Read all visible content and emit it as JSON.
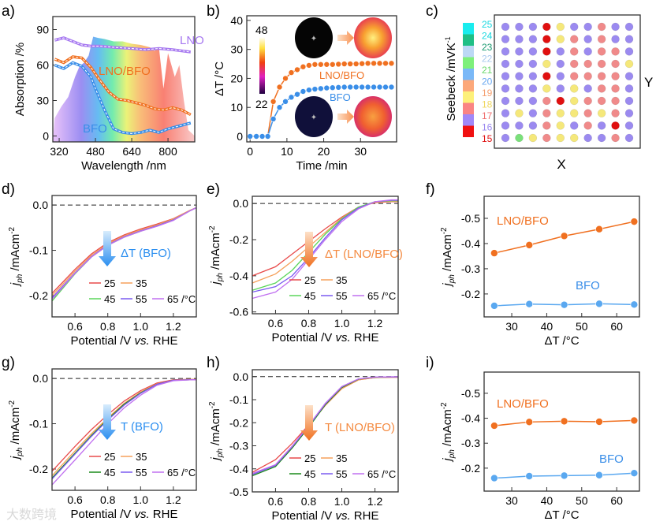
{
  "watermark": "大数跨境",
  "colors": {
    "lno": "#a678f0",
    "lnobfo": "#f07020",
    "bfo": "#3a8ee8",
    "t25": "#e84a4a",
    "t35": "#f5a05a",
    "t45": "#5ad65a",
    "t45dark": "#1a8a1a",
    "t55": "#7a5af0",
    "t65": "#c070f0"
  },
  "chart_data": [
    {
      "id": "a",
      "label": "a)",
      "type": "line",
      "xlabel": "Wavelength /nm",
      "ylabel": "Absorption /%",
      "xlim": [
        292,
        918
      ],
      "ylim": [
        -5,
        101
      ],
      "xticks": [
        320,
        480,
        640,
        800
      ],
      "yticks": [
        0,
        30,
        60,
        90
      ],
      "series": [
        {
          "name": "LNO",
          "color": "#a678f0",
          "x": [
            300,
            340,
            380,
            420,
            460,
            500,
            560,
            640,
            700,
            760,
            820,
            900
          ],
          "y": [
            81,
            83,
            80,
            77,
            76,
            76,
            75,
            74,
            73,
            74,
            73,
            71
          ]
        },
        {
          "name": "LNO/BFO",
          "color": "#f07020",
          "x": [
            300,
            340,
            380,
            420,
            460,
            500,
            540,
            580,
            620,
            660,
            700,
            740,
            780,
            820,
            860,
            900
          ],
          "y": [
            65,
            62,
            67,
            66,
            58,
            47,
            37,
            31,
            30,
            28,
            26,
            23,
            22,
            24,
            22,
            18
          ]
        },
        {
          "name": "BFO",
          "color": "#3a8ee8",
          "x": [
            300,
            340,
            380,
            420,
            460,
            480,
            520,
            560,
            600,
            640,
            680,
            720,
            760,
            800,
            840,
            900
          ],
          "y": [
            60,
            57,
            62,
            59,
            50,
            40,
            22,
            6,
            3,
            2,
            3,
            5,
            3,
            6,
            8,
            11
          ]
        }
      ]
    },
    {
      "id": "b",
      "label": "b)",
      "type": "line",
      "xlabel": "Time /min",
      "ylabel": "ΔT /°C",
      "xlim": [
        -0.9,
        39.8
      ],
      "ylim": [
        -1.9,
        41.6
      ],
      "xticks": [
        0,
        10,
        20,
        30
      ],
      "yticks": [
        0,
        10,
        20,
        30,
        40
      ],
      "colorbar": {
        "max": "48",
        "min": "22"
      },
      "series": [
        {
          "name": "LNO/BFO",
          "color": "#f07020",
          "x": [
            0,
            1.7,
            3.3,
            4.8,
            6.3,
            8,
            9.6,
            11.2,
            12.8,
            14.4,
            16,
            17.6,
            19.2,
            20.8,
            22.4,
            24,
            25.6,
            27.2,
            28.8,
            30.4,
            32,
            33.6,
            35.2,
            36.8,
            38.4
          ],
          "y": [
            0,
            0,
            0,
            0,
            12,
            17,
            20,
            22,
            23,
            24,
            24.5,
            24.8,
            24.8,
            24.8,
            24.8,
            24.9,
            25,
            25,
            25,
            25.1,
            25.2,
            25.2,
            25.2,
            25.2,
            25.2
          ]
        },
        {
          "name": "BFO",
          "color": "#3a8ee8",
          "x": [
            0,
            1.7,
            3.3,
            4.8,
            6.3,
            8,
            9.6,
            11.2,
            12.8,
            14.4,
            16,
            17.6,
            19.2,
            20.8,
            22.4,
            24,
            25.6,
            27.2,
            28.8,
            30.4,
            32,
            33.6,
            35.2,
            36.8,
            38.4
          ],
          "y": [
            0,
            0,
            0,
            0,
            6,
            10,
            12,
            13.5,
            14.5,
            15.5,
            16,
            16.3,
            16.5,
            16.7,
            16.8,
            16.9,
            17,
            17,
            17,
            17,
            17,
            17,
            17,
            17,
            17
          ]
        }
      ]
    },
    {
      "id": "c",
      "label": "c)",
      "type": "heatmap",
      "ylabel": "Seebeck /mVK",
      "ylabel_sup": "-1",
      "xlabel": "X",
      "y_axis_label": "Y",
      "scale_labels": [
        "25",
        "24",
        "23",
        "22",
        "21",
        "20",
        "19",
        "18",
        "17",
        "16",
        "15"
      ],
      "scale_label_colors": [
        "#19d8e0",
        "#19d8e0",
        "#1a9a70",
        "#a8c8ee",
        "#6ad86a",
        "#6aa8f0",
        "#f5a070",
        "#f0d860",
        "#f07070",
        "#9a88f0",
        "#e01010"
      ],
      "scale_blocks": [
        "#19ecee",
        "#1fbf86",
        "#bcd8f5",
        "#7ef07a",
        "#7ab8f7",
        "#fca87a",
        "#fdf07a",
        "#fa8484",
        "#a088f8",
        "#f01010"
      ],
      "value_colors": {
        "15": "#e01010",
        "16": "#9b8af0",
        "17": "#f08a8a",
        "18": "#f5e87a",
        "21": "#7ae07a"
      },
      "grid": [
        [
          16,
          16,
          16,
          15,
          18,
          16,
          16,
          17,
          16,
          16
        ],
        [
          16,
          16,
          16,
          15,
          18,
          17,
          16,
          17,
          16,
          16
        ],
        [
          16,
          16,
          16,
          15,
          16,
          17,
          16,
          17,
          17,
          16
        ],
        [
          16,
          16,
          16,
          18,
          16,
          17,
          17,
          17,
          17,
          18
        ],
        [
          16,
          16,
          16,
          15,
          16,
          17,
          17,
          17,
          17,
          16
        ],
        [
          16,
          16,
          16,
          18,
          16,
          18,
          16,
          17,
          17,
          16
        ],
        [
          16,
          16,
          16,
          17,
          15,
          18,
          17,
          17,
          17,
          16
        ],
        [
          16,
          18,
          16,
          17,
          18,
          18,
          17,
          18,
          17,
          16
        ],
        [
          16,
          16,
          16,
          17,
          18,
          16,
          17,
          16,
          15,
          16
        ],
        [
          16,
          21,
          18,
          17,
          18,
          18,
          16,
          16,
          17,
          16
        ]
      ]
    },
    {
      "id": "d",
      "label": "d)",
      "type": "line",
      "xlabel": "Potential /V vs. RHE",
      "ylabel": "jph /mAcm-2",
      "xlim": [
        0.46,
        1.34
      ],
      "ylim": [
        -0.247,
        0.021
      ],
      "xticks": [
        0.6,
        0.8,
        1.0,
        1.2
      ],
      "yticks": [
        0.0,
        -0.1,
        -0.2
      ],
      "annotation": "ΔT (BFO)",
      "legend": [
        "25",
        "35",
        "45",
        "55",
        "65 /°C"
      ],
      "x": [
        0.46,
        0.6,
        0.7,
        0.8,
        0.9,
        1.0,
        1.1,
        1.2,
        1.3,
        1.34
      ],
      "series": [
        {
          "name": "25",
          "color": "#e84a4a",
          "y": [
            -0.195,
            -0.142,
            -0.108,
            -0.083,
            -0.066,
            -0.053,
            -0.042,
            -0.03,
            -0.012,
            -0.006
          ]
        },
        {
          "name": "35",
          "color": "#f5a05a",
          "y": [
            -0.2,
            -0.146,
            -0.111,
            -0.086,
            -0.068,
            -0.055,
            -0.044,
            -0.031,
            -0.012,
            -0.006
          ]
        },
        {
          "name": "45",
          "color": "#5ad65a",
          "y": [
            -0.212,
            -0.152,
            -0.115,
            -0.089,
            -0.071,
            -0.058,
            -0.046,
            -0.033,
            -0.013,
            -0.006
          ]
        },
        {
          "name": "55",
          "color": "#7a5af0",
          "y": [
            -0.205,
            -0.15,
            -0.114,
            -0.088,
            -0.07,
            -0.057,
            -0.046,
            -0.033,
            -0.013,
            -0.006
          ]
        },
        {
          "name": "65",
          "color": "#c070f0",
          "y": [
            -0.208,
            -0.151,
            -0.115,
            -0.089,
            -0.071,
            -0.058,
            -0.047,
            -0.034,
            -0.013,
            -0.006
          ]
        }
      ]
    },
    {
      "id": "e",
      "label": "e)",
      "type": "line",
      "xlabel": "Potential /V vs. RHE",
      "ylabel": "jph /mAcm-2",
      "xlim": [
        0.46,
        1.34
      ],
      "ylim": [
        -0.61,
        0.04
      ],
      "xticks": [
        0.6,
        0.8,
        1.0,
        1.2
      ],
      "yticks": [
        0.0,
        -0.2,
        -0.4,
        -0.6
      ],
      "annotation": "ΔT (LNO/BFO)",
      "legend": [
        "25",
        "35",
        "45",
        "55",
        "65 /°C"
      ],
      "x": [
        0.46,
        0.6,
        0.7,
        0.8,
        0.9,
        1.0,
        1.1,
        1.2,
        1.3,
        1.34
      ],
      "series": [
        {
          "name": "25",
          "color": "#e84a4a",
          "y": [
            -0.4,
            -0.35,
            -0.28,
            -0.21,
            -0.14,
            -0.075,
            -0.02,
            0.005,
            0.01,
            0.01
          ]
        },
        {
          "name": "35",
          "color": "#f5a05a",
          "y": [
            -0.44,
            -0.39,
            -0.32,
            -0.24,
            -0.16,
            -0.08,
            -0.02,
            0.008,
            0.012,
            0.012
          ]
        },
        {
          "name": "45",
          "color": "#5ad65a",
          "y": [
            -0.48,
            -0.44,
            -0.37,
            -0.27,
            -0.17,
            -0.085,
            -0.02,
            0.01,
            0.015,
            0.015
          ]
        },
        {
          "name": "55",
          "color": "#7a5af0",
          "y": [
            -0.49,
            -0.46,
            -0.4,
            -0.3,
            -0.19,
            -0.09,
            -0.025,
            0.01,
            0.018,
            0.018
          ]
        },
        {
          "name": "65",
          "color": "#c070f0",
          "y": [
            -0.525,
            -0.49,
            -0.42,
            -0.31,
            -0.2,
            -0.1,
            -0.03,
            0.01,
            0.02,
            0.02
          ]
        }
      ]
    },
    {
      "id": "f",
      "label": "f)",
      "type": "line",
      "xlabel": "ΔT /°C",
      "ylabel": "jph /mAcm-2",
      "xlim": [
        22.1,
        66.5
      ],
      "ylim": [
        -0.109,
        -0.5875
      ],
      "xticks": [
        30,
        40,
        50,
        60
      ],
      "yticks": [
        -0.5,
        -0.4,
        -0.3,
        -0.2
      ],
      "markers": true,
      "x": [
        25,
        35,
        45,
        55,
        65
      ],
      "series": [
        {
          "name": "LNO/BFO",
          "color": "#f07020",
          "y": [
            -0.362,
            -0.394,
            -0.43,
            -0.457,
            -0.487
          ]
        },
        {
          "name": "BFO",
          "color": "#5aa8f0",
          "y": [
            -0.153,
            -0.16,
            -0.157,
            -0.161,
            -0.158
          ]
        }
      ]
    },
    {
      "id": "g",
      "label": "g)",
      "type": "line",
      "xlabel": "Potential /V vs. RHE",
      "ylabel": "jph /mAcm-2",
      "xlim": [
        0.46,
        1.34
      ],
      "ylim": [
        -0.247,
        0.021
      ],
      "xticks": [
        0.6,
        0.8,
        1.0,
        1.2
      ],
      "yticks": [
        0.0,
        -0.1,
        -0.2
      ],
      "annotation": "T (BFO)",
      "legend": [
        "25",
        "35",
        "45",
        "55",
        "65 /°C"
      ],
      "x": [
        0.46,
        0.6,
        0.7,
        0.8,
        0.9,
        1.0,
        1.1,
        1.2,
        1.3,
        1.34
      ],
      "series": [
        {
          "name": "25",
          "color": "#e84a4a",
          "y": [
            -0.205,
            -0.15,
            -0.113,
            -0.08,
            -0.05,
            -0.027,
            -0.01,
            -0.003,
            -0.002,
            -0.002
          ]
        },
        {
          "name": "35",
          "color": "#f5a05a",
          "y": [
            -0.215,
            -0.16,
            -0.122,
            -0.087,
            -0.055,
            -0.03,
            -0.012,
            -0.004,
            -0.002,
            -0.002
          ]
        },
        {
          "name": "45",
          "color": "#1a8a1a",
          "y": [
            -0.22,
            -0.165,
            -0.126,
            -0.09,
            -0.057,
            -0.032,
            -0.013,
            -0.004,
            -0.003,
            -0.003
          ]
        },
        {
          "name": "55",
          "color": "#7a5af0",
          "y": [
            -0.222,
            -0.167,
            -0.128,
            -0.092,
            -0.059,
            -0.033,
            -0.013,
            -0.004,
            -0.003,
            -0.003
          ]
        },
        {
          "name": "65",
          "color": "#c070f0",
          "y": [
            -0.235,
            -0.18,
            -0.14,
            -0.1,
            -0.065,
            -0.037,
            -0.015,
            -0.005,
            -0.003,
            -0.003
          ]
        }
      ]
    },
    {
      "id": "h",
      "label": "h)",
      "type": "line",
      "xlabel": "Potential /V vs. RHE",
      "ylabel": "jph /mAcm-2",
      "xlim": [
        0.46,
        1.34
      ],
      "ylim": [
        -0.5,
        0.03
      ],
      "xticks": [
        0.6,
        0.8,
        1.0,
        1.2
      ],
      "yticks": [
        0.0,
        -0.1,
        -0.2,
        -0.3,
        -0.4,
        -0.5
      ],
      "annotation": "T (LNO/BFO)",
      "legend": [
        "25",
        "35",
        "45",
        "55",
        "65 /°C"
      ],
      "x": [
        0.46,
        0.6,
        0.7,
        0.8,
        0.9,
        1.0,
        1.1,
        1.2,
        1.3,
        1.34
      ],
      "series": [
        {
          "name": "25",
          "color": "#e84a4a",
          "y": [
            -0.415,
            -0.36,
            -0.29,
            -0.21,
            -0.125,
            -0.052,
            -0.014,
            -0.004,
            -0.003,
            -0.003
          ]
        },
        {
          "name": "35",
          "color": "#f5a05a",
          "y": [
            -0.42,
            -0.385,
            -0.305,
            -0.215,
            -0.125,
            -0.052,
            -0.014,
            -0.004,
            -0.003,
            -0.003
          ]
        },
        {
          "name": "45",
          "color": "#1a8a1a",
          "y": [
            -0.43,
            -0.39,
            -0.31,
            -0.22,
            -0.122,
            -0.047,
            -0.011,
            -0.003,
            -0.002,
            -0.002
          ]
        },
        {
          "name": "55",
          "color": "#7a5af0",
          "y": [
            -0.425,
            -0.385,
            -0.305,
            -0.215,
            -0.118,
            -0.044,
            -0.01,
            -0.002,
            -0.001,
            -0.001
          ]
        },
        {
          "name": "65",
          "color": "#c070f0",
          "y": [
            -0.42,
            -0.382,
            -0.302,
            -0.212,
            -0.116,
            -0.043,
            -0.01,
            -0.002,
            -0.001,
            -0.001
          ]
        }
      ]
    },
    {
      "id": "i",
      "label": "i)",
      "type": "line",
      "xlabel": "ΔT /°C",
      "ylabel": "jph /mAcm-2",
      "xlim": [
        22.1,
        66.5
      ],
      "ylim": [
        -0.108,
        -0.585
      ],
      "xticks": [
        30,
        40,
        50,
        60
      ],
      "yticks": [
        -0.5,
        -0.4,
        -0.3,
        -0.2
      ],
      "markers": true,
      "x": [
        25,
        35,
        45,
        55,
        65
      ],
      "series": [
        {
          "name": "LNO/BFO",
          "color": "#f07020",
          "y": [
            -0.37,
            -0.385,
            -0.388,
            -0.386,
            -0.391
          ]
        },
        {
          "name": "BFO",
          "color": "#5aa8f0",
          "y": [
            -0.16,
            -0.168,
            -0.17,
            -0.172,
            -0.18
          ]
        }
      ]
    }
  ]
}
